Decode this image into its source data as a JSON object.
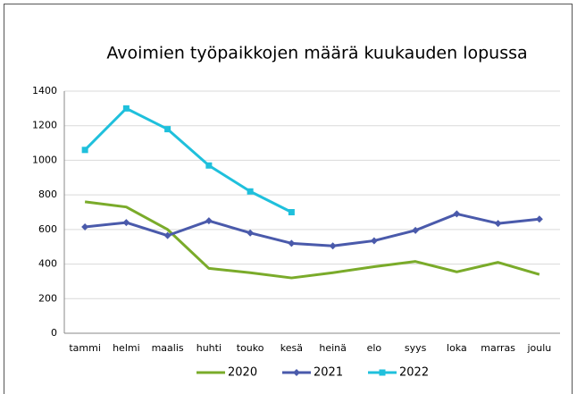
{
  "chart_data": {
    "type": "line",
    "title": "Avoimien työpaikkojen määrä kuukauden lopussa",
    "categories": [
      "tammi",
      "helmi",
      "maalis",
      "huhti",
      "touko",
      "kesä",
      "heinä",
      "elo",
      "syys",
      "loka",
      "marras",
      "joulu"
    ],
    "series": [
      {
        "name": "2020",
        "color": "#7aab2a",
        "marker": "none",
        "values": [
          760,
          730,
          600,
          375,
          350,
          320,
          350,
          385,
          415,
          355,
          410,
          340
        ]
      },
      {
        "name": "2021",
        "color": "#4a5aab",
        "marker": "diamond",
        "values": [
          615,
          640,
          565,
          650,
          580,
          520,
          505,
          535,
          595,
          690,
          635,
          660
        ]
      },
      {
        "name": "2022",
        "color": "#1fc0dc",
        "marker": "square",
        "values": [
          1060,
          1300,
          1180,
          970,
          820,
          700,
          null,
          null,
          null,
          null,
          null,
          null
        ]
      }
    ],
    "ylim": [
      0,
      1400
    ],
    "yticks": [
      0,
      200,
      400,
      600,
      800,
      1000,
      1200,
      1400
    ],
    "grid": true,
    "legend": "bottom"
  }
}
